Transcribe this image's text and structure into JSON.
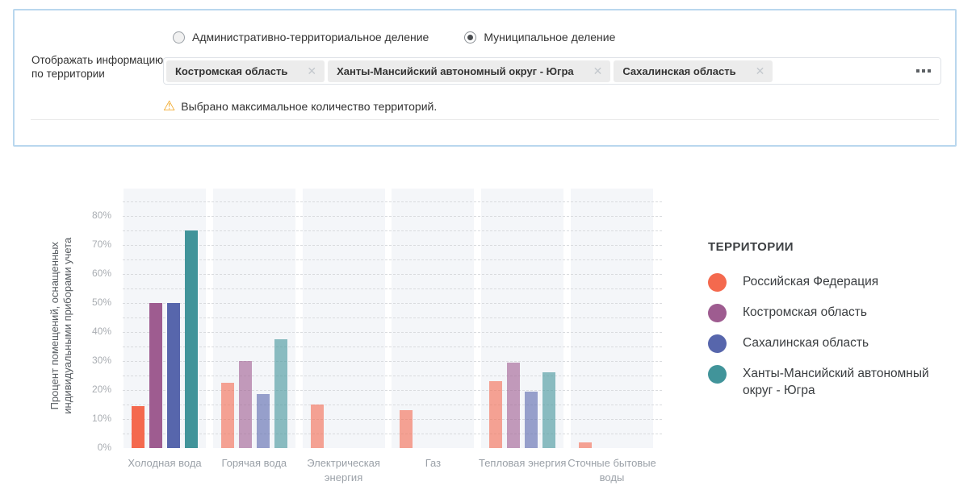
{
  "panel": {
    "radio_options": [
      {
        "label": "Административно-территориальное деление",
        "selected": false
      },
      {
        "label": "Муниципальное деление",
        "selected": true
      }
    ],
    "territory_label_line1": "Отображать информацию",
    "territory_label_line2": "по территории",
    "tags": [
      {
        "label": "Костромская область"
      },
      {
        "label": "Ханты-Мансийский автономный округ - Югра"
      },
      {
        "label": "Сахалинская область"
      }
    ],
    "warning_text": "Выбрано максимальное количество территорий."
  },
  "chart_data": {
    "type": "bar",
    "categories": [
      "Холодная вода",
      "Горячая вода",
      "Электрическая энергия",
      "Газ",
      "Тепловая энергия",
      "Сточные бытовые воды"
    ],
    "series": [
      {
        "name": "Российская Федерация",
        "color": "#F4694E",
        "values": [
          14.5,
          22.5,
          15,
          13,
          23,
          2
        ]
      },
      {
        "name": "Костромская область",
        "color": "#9E5C90",
        "values": [
          50,
          30,
          0,
          0,
          29.5,
          0
        ]
      },
      {
        "name": "Сахалинская область",
        "color": "#5766AC",
        "values": [
          50,
          18.5,
          0,
          0,
          19.5,
          0
        ]
      },
      {
        "name": "Ханты-Мансийский автономный округ - Югра",
        "color": "#41949A",
        "values": [
          75,
          37.5,
          0,
          0,
          26,
          0
        ]
      }
    ],
    "ylabel_line1": "Процент помещений, оснащенных",
    "ylabel_line2": "индивидуальными приборами учета",
    "ylabel": "Процент помещений, оснащенных индивидуальными приборами учета",
    "yticks_percent": [
      0,
      10,
      20,
      30,
      40,
      50,
      60,
      70,
      80
    ],
    "ylim": [
      0,
      89
    ],
    "grid": "horizontal dashed every 5%",
    "highlighted_category_index": 0,
    "legend_title": "ТЕРРИТОРИИ",
    "legend_position": "right"
  }
}
